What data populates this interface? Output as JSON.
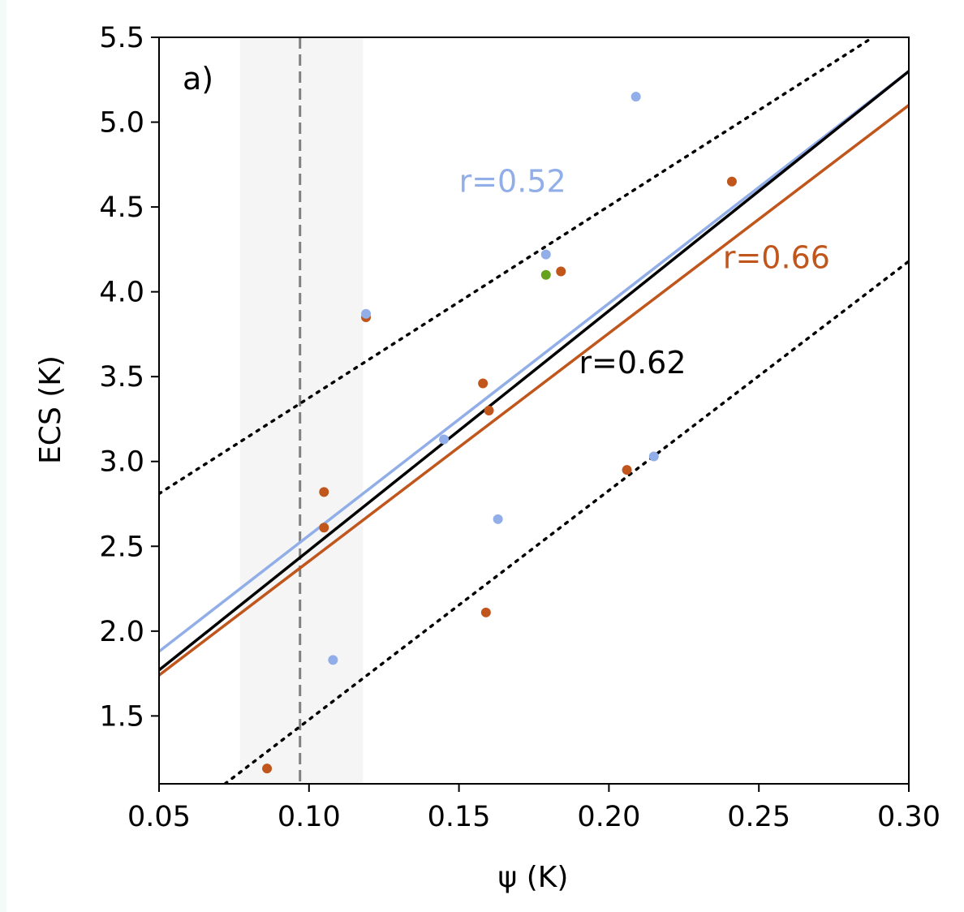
{
  "chart_data": {
    "type": "scatter",
    "panel_label": "a)",
    "xlabel": "ψ (K)",
    "ylabel": "ECS (K)",
    "xlim": [
      0.05,
      0.3
    ],
    "ylim": [
      1.1,
      5.5
    ],
    "xticks": [
      "0.05",
      "0.10",
      "0.15",
      "0.20",
      "0.25",
      "0.30"
    ],
    "yticks": [
      "1.5",
      "2.0",
      "2.5",
      "3.0",
      "3.5",
      "4.0",
      "4.5",
      "5.0",
      "5.5"
    ],
    "observed_estimate": {
      "x": 0.097,
      "range": [
        0.077,
        0.118
      ],
      "color": "#808080"
    },
    "colors": {
      "blue": "#91aee8",
      "orange": "#c0561c",
      "green": "#67a21f",
      "black": "#000000",
      "shade": "#f5f5f5"
    },
    "series": [
      {
        "name": "blue models",
        "color": "#91aee8",
        "points": [
          {
            "x": 0.119,
            "y": 3.87
          },
          {
            "x": 0.145,
            "y": 3.13
          },
          {
            "x": 0.163,
            "y": 2.66
          },
          {
            "x": 0.108,
            "y": 1.83
          },
          {
            "x": 0.179,
            "y": 4.22
          },
          {
            "x": 0.209,
            "y": 5.15
          },
          {
            "x": 0.215,
            "y": 3.03
          }
        ],
        "fit": {
          "x": [
            0.05,
            0.3
          ],
          "y": [
            1.88,
            5.3
          ]
        },
        "annotation": "r=0.52"
      },
      {
        "name": "orange models",
        "color": "#c0561c",
        "points": [
          {
            "x": 0.119,
            "y": 3.85
          },
          {
            "x": 0.105,
            "y": 2.82
          },
          {
            "x": 0.105,
            "y": 2.61
          },
          {
            "x": 0.158,
            "y": 3.46
          },
          {
            "x": 0.16,
            "y": 3.3
          },
          {
            "x": 0.159,
            "y": 2.11
          },
          {
            "x": 0.184,
            "y": 4.12
          },
          {
            "x": 0.206,
            "y": 2.95
          },
          {
            "x": 0.241,
            "y": 4.65
          },
          {
            "x": 0.086,
            "y": 1.19
          }
        ],
        "fit": {
          "x": [
            0.05,
            0.3
          ],
          "y": [
            1.74,
            5.1
          ]
        },
        "annotation": "r=0.66"
      },
      {
        "name": "green model",
        "color": "#67a21f",
        "points": [
          {
            "x": 0.179,
            "y": 4.1
          }
        ]
      },
      {
        "name": "all models",
        "color": "#000000",
        "fit": {
          "x": [
            0.05,
            0.3
          ],
          "y": [
            1.77,
            5.3
          ]
        },
        "prediction_interval": {
          "upper": {
            "x": [
              0.05,
              0.288
            ],
            "y": [
              2.81,
              5.5
            ]
          },
          "lower": {
            "x": [
              0.072,
              0.3
            ],
            "y": [
              1.1,
              4.18
            ]
          }
        },
        "annotation": "r=0.62"
      }
    ]
  }
}
